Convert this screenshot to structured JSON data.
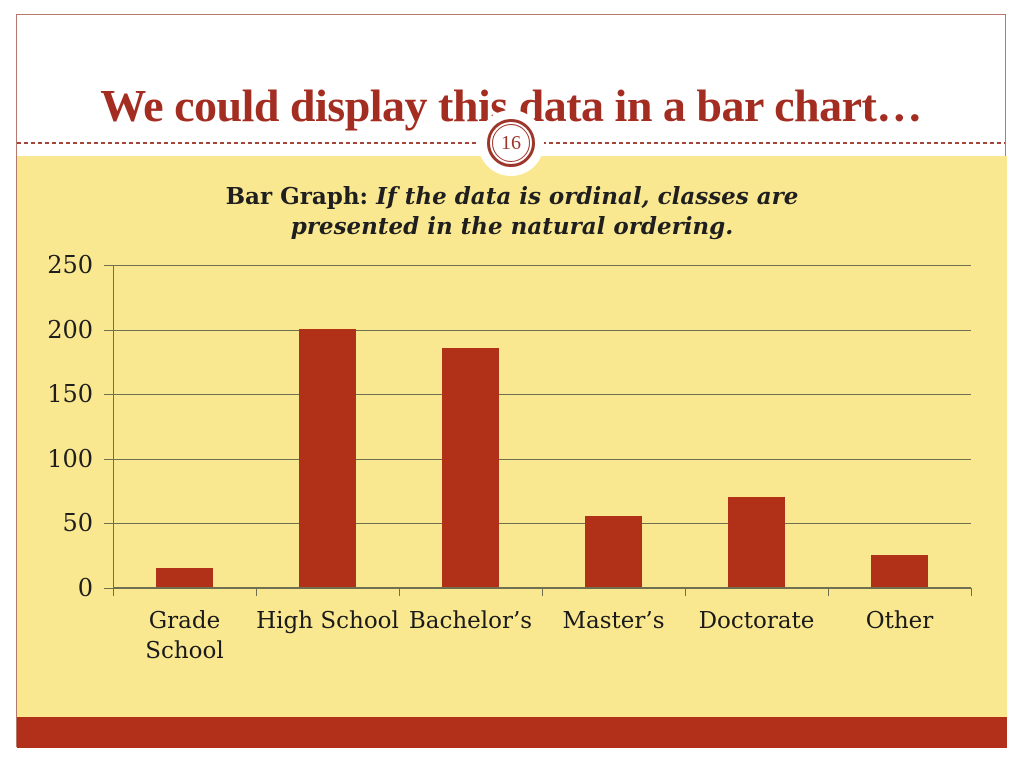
{
  "slide": {
    "title": "We could display this data in a bar chart…",
    "page_number": "16"
  },
  "chart_data": {
    "type": "bar",
    "title": "Bar Graph: If the data is ordinal, classes are presented in the natural ordering.",
    "title_prefix": "Bar Graph:",
    "title_emphasis": "If the data is ordinal, classes are presented in the natural ordering.",
    "categories": [
      "Grade School",
      "High School",
      "Bachelor’s",
      "Master’s",
      "Doctorate",
      "Other"
    ],
    "category_lines": [
      [
        "Grade",
        "School"
      ],
      [
        "High School"
      ],
      [
        "Bachelor’s"
      ],
      [
        "Master’s"
      ],
      [
        "Doctorate"
      ],
      [
        "Other"
      ]
    ],
    "values": [
      15,
      200,
      185,
      55,
      70,
      25
    ],
    "y_ticks": [
      250,
      200,
      150,
      100,
      50,
      0
    ],
    "ylim": [
      0,
      250
    ],
    "xlabel": "",
    "ylabel": "",
    "grid": true,
    "legend": false,
    "bar_color": "#B03018",
    "plot_background": "#FAE890"
  },
  "colors": {
    "accent_red": "#A42D22",
    "ring_red": "#9E352B",
    "bar_red": "#B03018",
    "footer_red": "#B23019",
    "canvas_yellow": "#FAE890",
    "gridline_olive": "#6F6F52",
    "frame_border": "#B5786C",
    "text_dark": "#1F1F1F"
  }
}
